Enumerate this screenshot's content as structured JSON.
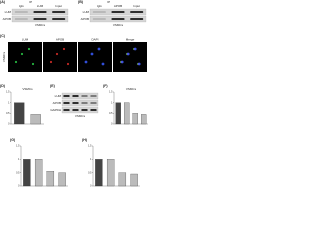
{
  "panels": {
    "a": {
      "label": "(A)",
      "header": "IP",
      "columns": [
        "IgG",
        "LUM",
        "Input"
      ],
      "rows": [
        "LUM",
        "APOB"
      ],
      "cell": "VSMCs"
    },
    "b": {
      "label": "(B)",
      "header": "IP",
      "columns": [
        "IgG",
        "APOB",
        "Input"
      ],
      "rows": [
        "LUM",
        "APOB"
      ],
      "cell": "VSMCs"
    },
    "c": {
      "label": "(C)",
      "columns": [
        "LUM",
        "APOB",
        "DAPI",
        "Merge"
      ],
      "cell": "VSMCs"
    },
    "d": {
      "label": "(D)",
      "cell": "VSMCs",
      "values": [
        1,
        0.45
      ],
      "ylim": [
        0,
        1.5
      ],
      "yticks": [
        0,
        0.5,
        1,
        1.5
      ]
    },
    "e": {
      "label": "(E)",
      "cell": "VSMCs",
      "rows": [
        "LUM",
        "APOB",
        "GAPDH"
      ],
      "columns": [
        null,
        null,
        null,
        null
      ]
    },
    "f": {
      "label": "(F)",
      "cell": "VSMCs",
      "values": [
        1,
        1,
        0.5,
        0.45
      ],
      "ylim": [
        0,
        1.5
      ],
      "yticks": [
        0,
        0.5,
        1,
        1.5
      ]
    },
    "g": {
      "label": "(G)",
      "values": [
        1,
        1,
        0.55,
        0.5
      ],
      "ylim": [
        0,
        1.5
      ],
      "yticks": [
        0,
        0.5,
        1,
        1.5
      ]
    },
    "h": {
      "label": "(H)",
      "values": [
        1,
        1,
        0.5,
        0.45
      ],
      "ylim": [
        0,
        1.5
      ],
      "yticks": [
        0,
        0.5,
        1,
        1.5
      ]
    }
  }
}
